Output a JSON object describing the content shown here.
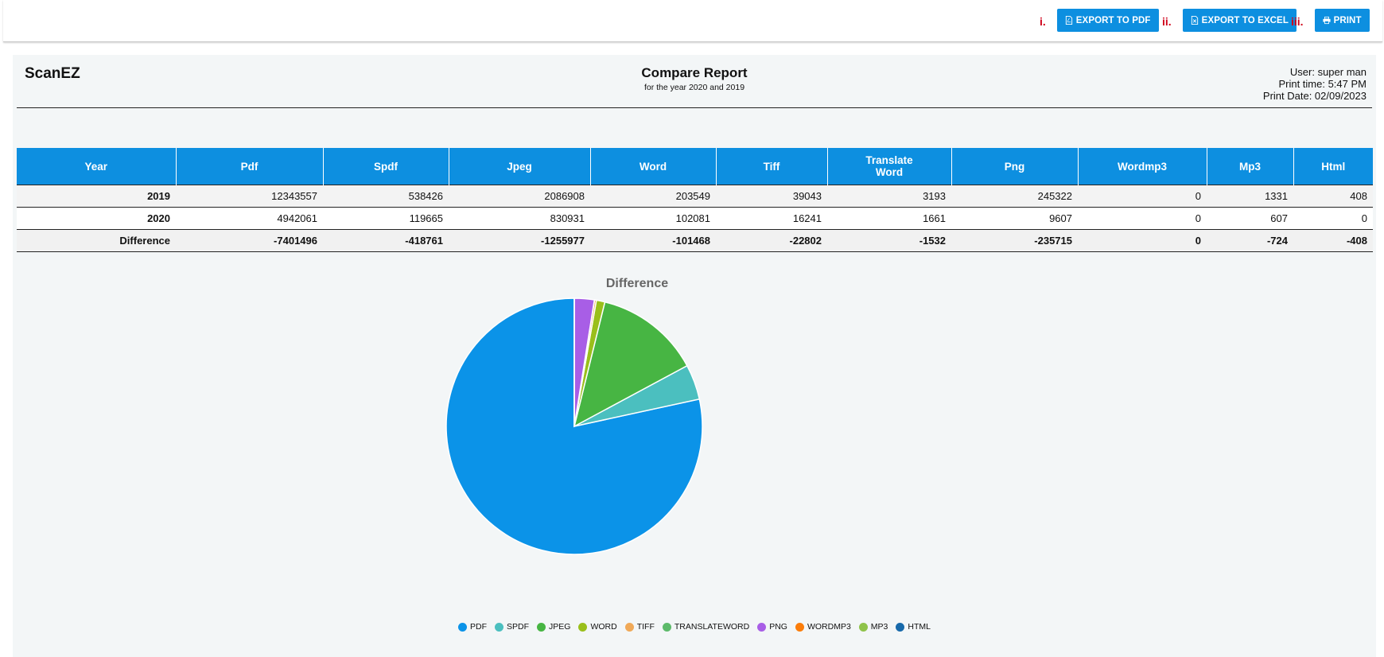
{
  "toolbar": {
    "buttons": [
      {
        "num": "i.",
        "label": "EXPORT TO PDF",
        "icon": "file-pdf-icon"
      },
      {
        "num": "ii.",
        "label": "EXPORT TO EXCEL",
        "icon": "file-excel-icon"
      },
      {
        "num": "iii.",
        "label": "PRINT",
        "icon": "print-icon"
      }
    ]
  },
  "report": {
    "brand": "ScanEZ",
    "title": "Compare Report",
    "subtitle": "for the year 2020 and 2019",
    "user": "User: super man",
    "print_time": "Print time: 5:47 PM",
    "print_date": "Print Date: 02/09/2023"
  },
  "table": {
    "headers": [
      "Year",
      "Pdf",
      "Spdf",
      "Jpeg",
      "Word",
      "Tiff",
      "Translate Word",
      "Png",
      "Wordmp3",
      "Mp3",
      "Html"
    ],
    "rows": [
      [
        "2019",
        "12343557",
        "538426",
        "2086908",
        "203549",
        "39043",
        "3193",
        "245322",
        "0",
        "1331",
        "408"
      ],
      [
        "2020",
        "4942061",
        "119665",
        "830931",
        "102081",
        "16241",
        "1661",
        "9607",
        "0",
        "607",
        "0"
      ],
      [
        "Difference",
        "-7401496",
        "-418761",
        "-1255977",
        "-101468",
        "-22802",
        "-1532",
        "-235715",
        "0",
        "-724",
        "-408"
      ]
    ]
  },
  "chart_data": {
    "type": "pie",
    "title": "Difference",
    "categories": [
      "PDF",
      "SPDF",
      "JPEG",
      "WORD",
      "TIFF",
      "TRANSLATEWORD",
      "PNG",
      "WORDMP3",
      "MP3",
      "HTML"
    ],
    "values": [
      7401496,
      418761,
      1255977,
      101468,
      22802,
      1532,
      235715,
      0,
      724,
      408
    ],
    "colors": [
      "#0b93e8",
      "#4bbfbf",
      "#47b543",
      "#9abf1b",
      "#f0a958",
      "#5cba6a",
      "#a85ee6",
      "#fb7d0a",
      "#8fc34a",
      "#1769aa"
    ],
    "legend_position": "bottom"
  }
}
